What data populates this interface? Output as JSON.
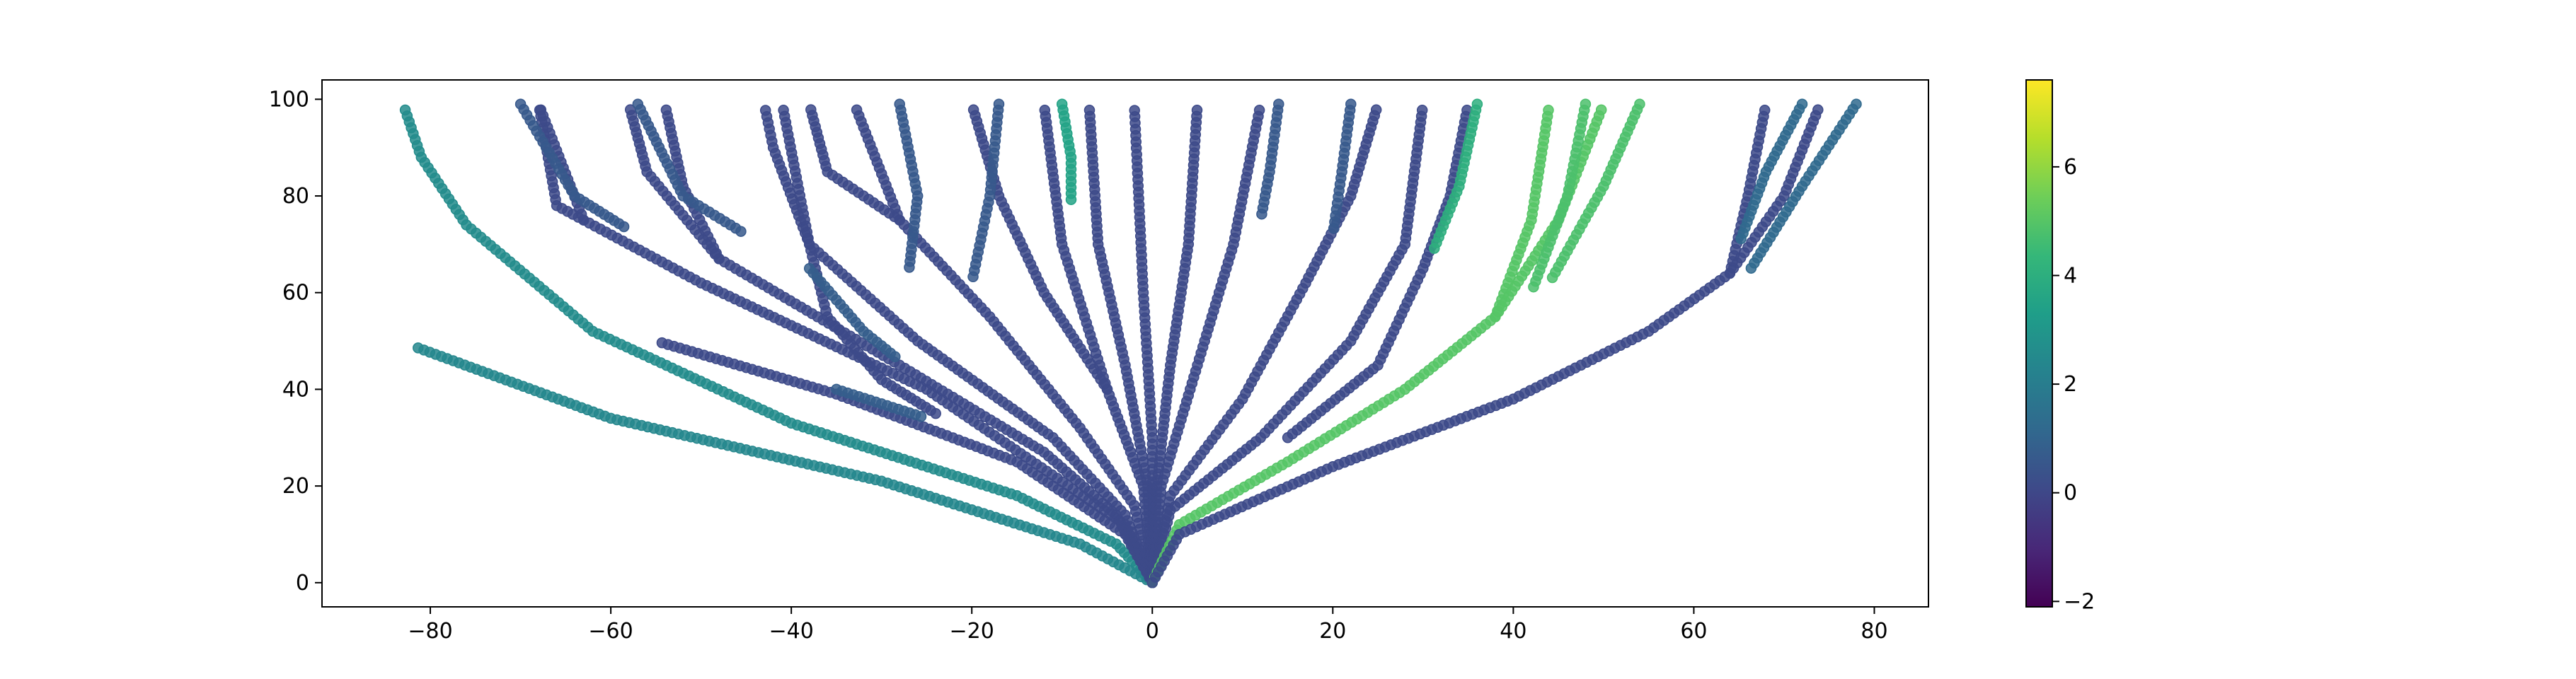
{
  "chart_data": {
    "type": "scatter",
    "title": "",
    "xlabel": "",
    "ylabel": "",
    "xlim": [
      -92,
      86
    ],
    "ylim": [
      -5,
      104
    ],
    "grid": false,
    "x_ticks": [
      -80,
      -60,
      -40,
      -20,
      0,
      20,
      40,
      60,
      80
    ],
    "y_ticks": [
      0,
      20,
      40,
      60,
      80,
      100
    ],
    "x_tick_labels": [
      "−80",
      "−60",
      "−40",
      "−20",
      "0",
      "20",
      "40",
      "60",
      "80"
    ],
    "y_tick_labels": [
      "0",
      "20",
      "40",
      "60",
      "80",
      "100"
    ],
    "colorbar": {
      "colormap": "viridis",
      "range": [
        -2.1,
        7.6
      ],
      "ticks": [
        -2,
        0,
        2,
        4,
        6
      ],
      "tick_labels": [
        "−2",
        "0",
        "2",
        "4",
        "6"
      ]
    },
    "marker": "circle",
    "branches": [
      {
        "points": [
          [
            0,
            0
          ],
          [
            -4,
            8
          ],
          [
            -15,
            18
          ],
          [
            -40,
            33
          ],
          [
            -62,
            52
          ],
          [
            -76,
            74
          ],
          [
            -81,
            88
          ],
          [
            -83,
            99
          ]
        ],
        "value": 2.6
      },
      {
        "points": [
          [
            0,
            0
          ],
          [
            -8,
            8
          ],
          [
            -30,
            21
          ],
          [
            -60,
            34
          ],
          [
            -82,
            49
          ]
        ],
        "value": 2.4
      },
      {
        "points": [
          [
            0,
            0
          ],
          [
            -3,
            10
          ],
          [
            -15,
            25
          ],
          [
            -35,
            39
          ],
          [
            -55,
            50
          ]
        ],
        "value": 0.1
      },
      {
        "points": [
          [
            0,
            0
          ],
          [
            -3,
            12
          ],
          [
            -25,
            40
          ],
          [
            -50,
            62
          ],
          [
            -63,
            75
          ],
          [
            -68,
            99
          ]
        ],
        "value": 0.1
      },
      {
        "points": [
          [
            -63,
            75
          ],
          [
            -66,
            78
          ],
          [
            -68,
            99
          ]
        ],
        "value": 0.1
      },
      {
        "points": [
          [
            0,
            0
          ],
          [
            -4,
            14
          ],
          [
            -12,
            27
          ],
          [
            -28,
            45
          ],
          [
            -48,
            67
          ],
          [
            -56,
            85
          ],
          [
            -58,
            99
          ]
        ],
        "value": 0.1
      },
      {
        "points": [
          [
            -48,
            67
          ],
          [
            -52,
            82
          ],
          [
            -54,
            99
          ]
        ],
        "value": 0.1
      },
      {
        "points": [
          [
            0,
            0
          ],
          [
            -3,
            14
          ],
          [
            -11,
            30
          ],
          [
            -26,
            50
          ],
          [
            -38,
            70
          ],
          [
            -42,
            90
          ],
          [
            -43,
            99
          ]
        ],
        "value": 0.1
      },
      {
        "points": [
          [
            0,
            0
          ],
          [
            -2,
            16
          ],
          [
            -8,
            32
          ],
          [
            -18,
            55
          ],
          [
            -28,
            75
          ],
          [
            -33,
            99
          ]
        ],
        "value": 0.1
      },
      {
        "points": [
          [
            -28,
            75
          ],
          [
            -36,
            85
          ],
          [
            -38,
            99
          ]
        ],
        "value": 0.1
      },
      {
        "points": [
          [
            0,
            0
          ],
          [
            -1,
            20
          ],
          [
            -5,
            40
          ],
          [
            -12,
            60
          ],
          [
            -17,
            80
          ],
          [
            -20,
            99
          ]
        ],
        "value": 0.1
      },
      {
        "points": [
          [
            -5,
            40
          ],
          [
            -10,
            70
          ],
          [
            -12,
            99
          ]
        ],
        "value": 0.1
      },
      {
        "points": [
          [
            0,
            0
          ],
          [
            -0.5,
            20
          ],
          [
            -3,
            45
          ],
          [
            -6,
            70
          ],
          [
            -7,
            99
          ]
        ],
        "value": 0.1
      },
      {
        "points": [
          [
            0,
            0
          ],
          [
            0,
            30
          ],
          [
            -1,
            60
          ],
          [
            -2,
            99
          ]
        ],
        "value": 0.1
      },
      {
        "points": [
          [
            0,
            0
          ],
          [
            0.5,
            20
          ],
          [
            2,
            45
          ],
          [
            4,
            70
          ],
          [
            5,
            99
          ]
        ],
        "value": 0.1
      },
      {
        "points": [
          [
            0,
            0
          ],
          [
            1,
            20
          ],
          [
            5,
            45
          ],
          [
            9,
            70
          ],
          [
            12,
            99
          ]
        ],
        "value": 0.1
      },
      {
        "points": [
          [
            0,
            0
          ],
          [
            2,
            18
          ],
          [
            10,
            38
          ],
          [
            17,
            62
          ],
          [
            22,
            80
          ],
          [
            25,
            99
          ]
        ],
        "value": 0.1
      },
      {
        "points": [
          [
            0,
            0
          ],
          [
            2,
            15
          ],
          [
            12,
            30
          ],
          [
            22,
            50
          ],
          [
            28,
            70
          ],
          [
            30,
            99
          ]
        ],
        "value": 0.1
      },
      {
        "points": [
          [
            0,
            0
          ],
          [
            3,
            12
          ],
          [
            15,
            25
          ],
          [
            28,
            40
          ],
          [
            38,
            55
          ],
          [
            42,
            75
          ],
          [
            44,
            99
          ]
        ],
        "value": 5.0
      },
      {
        "points": [
          [
            38,
            55
          ],
          [
            45,
            75
          ],
          [
            50,
            99
          ]
        ],
        "value": 5.0
      },
      {
        "points": [
          [
            0,
            0
          ],
          [
            3,
            10
          ],
          [
            20,
            24
          ],
          [
            40,
            38
          ],
          [
            55,
            52
          ],
          [
            64,
            64
          ],
          [
            70,
            80
          ],
          [
            74,
            99
          ]
        ],
        "value": 0.1
      },
      {
        "points": [
          [
            64,
            64
          ],
          [
            66,
            80
          ],
          [
            68,
            99
          ]
        ],
        "value": 0.1
      },
      {
        "points": [
          [
            -24,
            35
          ],
          [
            -30,
            42
          ],
          [
            -36,
            55
          ],
          [
            -38,
            70
          ],
          [
            -41,
            99
          ]
        ],
        "value": 0.1
      },
      {
        "points": [
          [
            15,
            30
          ],
          [
            25,
            45
          ],
          [
            30,
            65
          ],
          [
            33,
            80
          ],
          [
            35,
            99
          ]
        ],
        "value": 0.1
      },
      {
        "points": [
          [
            -70,
            99
          ],
          [
            -64,
            80
          ],
          [
            -58,
            73
          ]
        ],
        "value": 0.6
      },
      {
        "points": [
          [
            -57,
            99
          ],
          [
            -52,
            80
          ],
          [
            -45,
            72
          ]
        ],
        "value": 0.6
      },
      {
        "points": [
          [
            -28,
            99
          ],
          [
            -26,
            80
          ],
          [
            -27,
            64
          ]
        ],
        "value": 0.6
      },
      {
        "points": [
          [
            -17,
            99
          ],
          [
            -18,
            80
          ],
          [
            -20,
            62
          ]
        ],
        "value": 0.6
      },
      {
        "points": [
          [
            14,
            99
          ],
          [
            13,
            85
          ],
          [
            12,
            75
          ]
        ],
        "value": 0.6
      },
      {
        "points": [
          [
            22,
            99
          ],
          [
            21,
            85
          ],
          [
            20,
            72
          ]
        ],
        "value": 0.6
      },
      {
        "points": [
          [
            36,
            99
          ],
          [
            34,
            82
          ],
          [
            31,
            68
          ]
        ],
        "value": 4.0
      },
      {
        "points": [
          [
            -10,
            99
          ],
          [
            -9,
            88
          ],
          [
            -9,
            78
          ]
        ],
        "value": 3.5
      },
      {
        "points": [
          [
            48,
            99
          ],
          [
            46,
            80
          ],
          [
            42,
            60
          ]
        ],
        "value": 4.8
      },
      {
        "points": [
          [
            54,
            99
          ],
          [
            50,
            82
          ],
          [
            44,
            62
          ]
        ],
        "value": 4.8
      },
      {
        "points": [
          [
            -38,
            65
          ],
          [
            -32,
            52
          ],
          [
            -28,
            46
          ]
        ],
        "value": 0.8
      },
      {
        "points": [
          [
            -35,
            40
          ],
          [
            -30,
            37
          ],
          [
            -25,
            34
          ]
        ],
        "value": 0.8
      },
      {
        "points": [
          [
            78,
            99
          ],
          [
            72,
            82
          ],
          [
            66,
            64
          ]
        ],
        "value": 1.2
      },
      {
        "points": [
          [
            72,
            99
          ],
          [
            68,
            85
          ],
          [
            65,
            70
          ]
        ],
        "value": 1.2
      }
    ]
  }
}
